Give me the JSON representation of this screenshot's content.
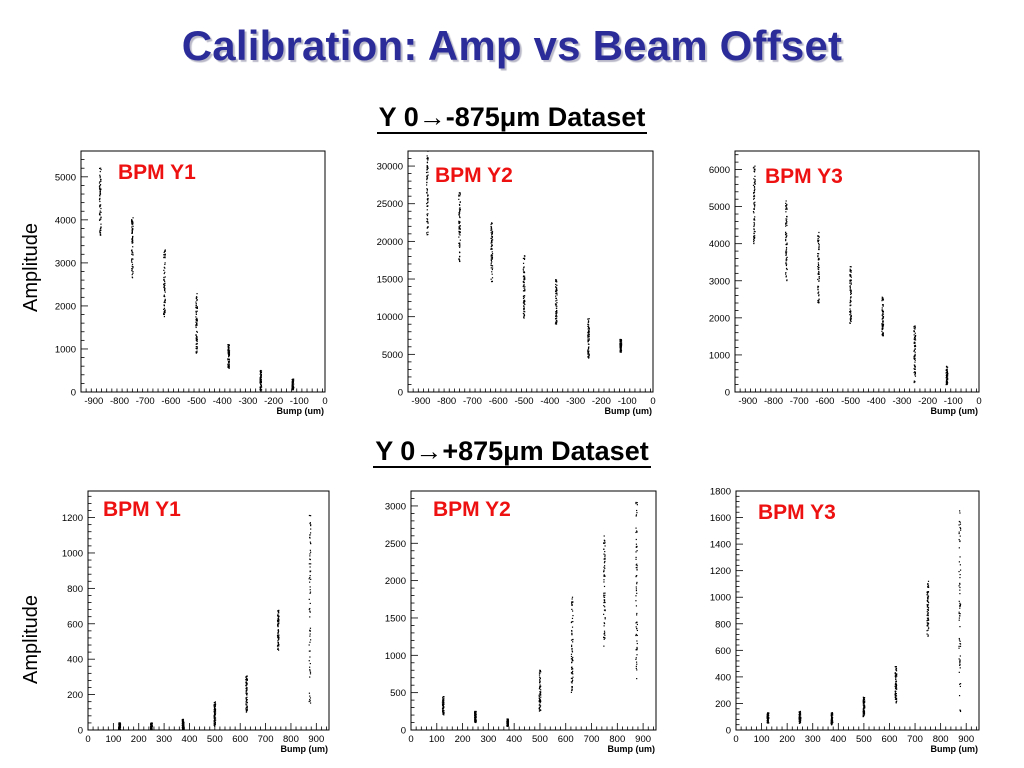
{
  "title": "Calibration: Amp vs Beam Offset",
  "datasets": {
    "top": "Y 0→-875μm Dataset",
    "bottom": "Y 0→+875μm Dataset"
  },
  "amplitude_label": "Amplitude",
  "colors": {
    "title": "#2b2b9a",
    "bpm_label": "#ee1111",
    "points": "#000000"
  },
  "chart_data": [
    {
      "type": "scatter",
      "label": "BPM Y1",
      "xlabel": "Bump (um)",
      "ylabel": "Amplitude",
      "xlim": [
        -950,
        0
      ],
      "ylim": [
        0,
        5600
      ],
      "xticks": [
        -900,
        -800,
        -700,
        -600,
        -500,
        -400,
        -300,
        -200,
        -100,
        0
      ],
      "yticks": [
        0,
        1000,
        2000,
        3000,
        4000,
        5000
      ],
      "clusters": [
        {
          "x": -875,
          "ymin": 3600,
          "ymax": 5200
        },
        {
          "x": -750,
          "ymin": 2650,
          "ymax": 4050
        },
        {
          "x": -625,
          "ymin": 1750,
          "ymax": 3300
        },
        {
          "x": -500,
          "ymin": 900,
          "ymax": 2300
        },
        {
          "x": -375,
          "ymin": 550,
          "ymax": 1100
        },
        {
          "x": -250,
          "ymin": 20,
          "ymax": 500
        },
        {
          "x": -125,
          "ymin": 50,
          "ymax": 300
        }
      ]
    },
    {
      "type": "scatter",
      "label": "BPM Y2",
      "xlabel": "Bump (um)",
      "ylabel": "Amplitude",
      "xlim": [
        -950,
        0
      ],
      "ylim": [
        0,
        32000
      ],
      "xticks": [
        -900,
        -800,
        -700,
        -600,
        -500,
        -400,
        -300,
        -200,
        -100,
        0
      ],
      "yticks": [
        0,
        5000,
        10000,
        15000,
        20000,
        25000,
        30000
      ],
      "clusters": [
        {
          "x": -875,
          "ymin": 20500,
          "ymax": 32000
        },
        {
          "x": -750,
          "ymin": 17000,
          "ymax": 26500
        },
        {
          "x": -625,
          "ymin": 14500,
          "ymax": 22500
        },
        {
          "x": -500,
          "ymin": 9800,
          "ymax": 18200
        },
        {
          "x": -375,
          "ymin": 9000,
          "ymax": 15000
        },
        {
          "x": -250,
          "ymin": 4500,
          "ymax": 9800
        },
        {
          "x": -125,
          "ymin": 5200,
          "ymax": 7000
        }
      ]
    },
    {
      "type": "scatter",
      "label": "BPM Y3",
      "xlabel": "Bump (um)",
      "ylabel": "Amplitude",
      "xlim": [
        -950,
        0
      ],
      "ylim": [
        0,
        6500
      ],
      "xticks": [
        -900,
        -800,
        -700,
        -600,
        -500,
        -400,
        -300,
        -200,
        -100,
        0
      ],
      "yticks": [
        0,
        1000,
        2000,
        3000,
        4000,
        5000,
        6000
      ],
      "clusters": [
        {
          "x": -875,
          "ymin": 4000,
          "ymax": 6100
        },
        {
          "x": -750,
          "ymin": 3000,
          "ymax": 5200
        },
        {
          "x": -625,
          "ymin": 2400,
          "ymax": 4400
        },
        {
          "x": -500,
          "ymin": 1800,
          "ymax": 3400
        },
        {
          "x": -375,
          "ymin": 1400,
          "ymax": 2600
        },
        {
          "x": -250,
          "ymin": 200,
          "ymax": 1800
        },
        {
          "x": -125,
          "ymin": 200,
          "ymax": 700
        }
      ]
    },
    {
      "type": "scatter",
      "label": "BPM Y1",
      "xlabel": "Bump (um)",
      "ylabel": "Amplitude",
      "xlim": [
        0,
        950
      ],
      "ylim": [
        0,
        1350
      ],
      "xticks": [
        0,
        100,
        200,
        300,
        400,
        500,
        600,
        700,
        800,
        900
      ],
      "yticks": [
        0,
        200,
        400,
        600,
        800,
        1000,
        1200
      ],
      "clusters": [
        {
          "x": 125,
          "ymin": 0,
          "ymax": 40
        },
        {
          "x": 250,
          "ymin": 0,
          "ymax": 40
        },
        {
          "x": 375,
          "ymin": 0,
          "ymax": 60
        },
        {
          "x": 500,
          "ymin": 20,
          "ymax": 160
        },
        {
          "x": 625,
          "ymin": 100,
          "ymax": 310
        },
        {
          "x": 750,
          "ymin": 450,
          "ymax": 680
        },
        {
          "x": 875,
          "ymin": 130,
          "ymax": 1240
        }
      ]
    },
    {
      "type": "scatter",
      "label": "BPM Y2",
      "xlabel": "Bump (um)",
      "ylabel": "Amplitude",
      "xlim": [
        0,
        950
      ],
      "ylim": [
        0,
        3200
      ],
      "xticks": [
        0,
        100,
        200,
        300,
        400,
        500,
        600,
        700,
        800,
        900
      ],
      "yticks": [
        0,
        500,
        1000,
        1500,
        2000,
        2500,
        3000
      ],
      "clusters": [
        {
          "x": 125,
          "ymin": 200,
          "ymax": 450
        },
        {
          "x": 250,
          "ymin": 100,
          "ymax": 250
        },
        {
          "x": 375,
          "ymin": 50,
          "ymax": 150
        },
        {
          "x": 500,
          "ymin": 250,
          "ymax": 800
        },
        {
          "x": 625,
          "ymin": 500,
          "ymax": 1800
        },
        {
          "x": 750,
          "ymin": 1100,
          "ymax": 2600
        },
        {
          "x": 875,
          "ymin": 600,
          "ymax": 3050
        }
      ]
    },
    {
      "type": "scatter",
      "label": "BPM Y3",
      "xlabel": "Bump (um)",
      "ylabel": "Amplitude",
      "xlim": [
        0,
        950
      ],
      "ylim": [
        0,
        1800
      ],
      "xticks": [
        0,
        100,
        200,
        300,
        400,
        500,
        600,
        700,
        800,
        900
      ],
      "yticks": [
        0,
        200,
        400,
        600,
        800,
        1000,
        1200,
        1400,
        1600,
        1800
      ],
      "clusters": [
        {
          "x": 125,
          "ymin": 50,
          "ymax": 130
        },
        {
          "x": 250,
          "ymin": 50,
          "ymax": 140
        },
        {
          "x": 375,
          "ymin": 40,
          "ymax": 130
        },
        {
          "x": 500,
          "ymin": 100,
          "ymax": 250
        },
        {
          "x": 625,
          "ymin": 200,
          "ymax": 480
        },
        {
          "x": 750,
          "ymin": 700,
          "ymax": 1120
        },
        {
          "x": 875,
          "ymin": 130,
          "ymax": 1660
        }
      ]
    }
  ]
}
